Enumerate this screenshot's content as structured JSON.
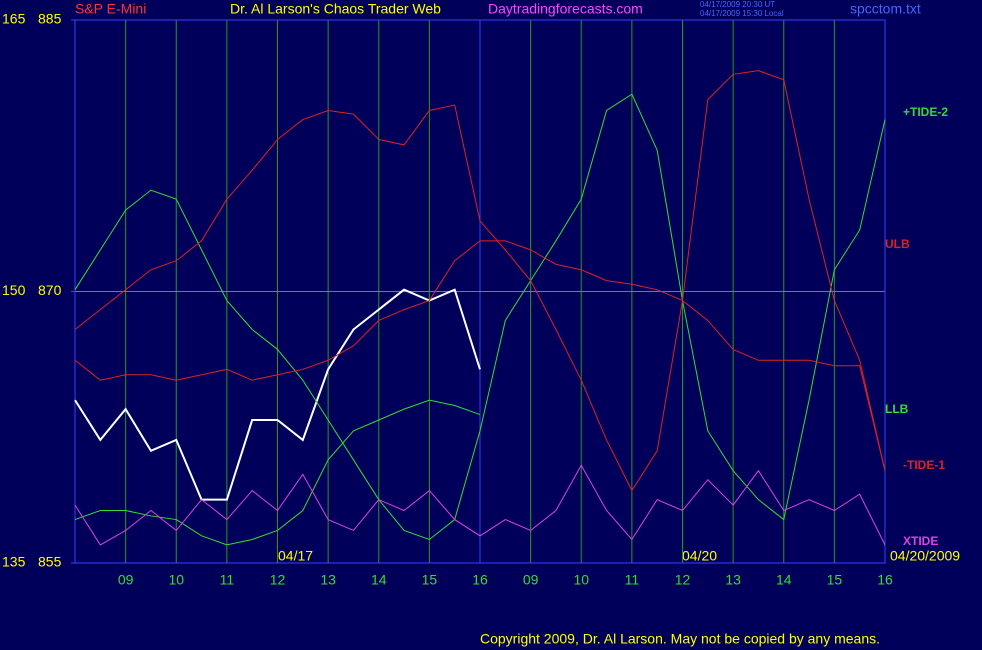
{
  "chart_data": {
    "type": "line",
    "subtitle": "S&P E-Mini",
    "title": "Dr. Al Larson's Chaos Trader Web",
    "annotations": [
      "Daytradingforecasts.com",
      "04/17/2009 20:30 UT",
      "04/17/2009 15:30 Local",
      "spcctom.txt",
      "04/17",
      "04/20",
      "04/20/2009",
      "Copyright 2009, Dr. Al Larson. May not be copied by any means."
    ],
    "categories": [
      null,
      null,
      "09",
      null,
      "10",
      null,
      "11",
      null,
      "12",
      null,
      "13",
      null,
      "14",
      null,
      "15",
      null,
      "16",
      null,
      "09",
      null,
      "10",
      null,
      "11",
      null,
      "12",
      null,
      "13",
      null,
      "14",
      null,
      "15",
      null,
      "16"
    ],
    "ylim": [
      855,
      885
    ],
    "yticks": [
      855,
      870,
      885
    ],
    "y2lim": [
      135,
      165
    ],
    "y2ticks": [
      135,
      150,
      165
    ],
    "grid": true,
    "series": [
      {
        "color": "#ffffff",
        "values": [
          864.0,
          861.8,
          863.5,
          861.2,
          861.8,
          858.5,
          858.5,
          862.9,
          862.9,
          861.8,
          865.7,
          867.9,
          869.0,
          870.1,
          869.5,
          870.1,
          865.7,
          null,
          null,
          null,
          null,
          null,
          null,
          null,
          null,
          null,
          null,
          null,
          null,
          null,
          null,
          null,
          null
        ]
      },
      {
        "name": "+TIDE-2",
        "color": "#33dd33",
        "values": [
          870.1,
          872.3,
          874.5,
          875.6,
          875.1,
          872.3,
          869.5,
          867.9,
          866.8,
          865.1,
          862.9,
          860.7,
          858.5,
          856.8,
          856.3,
          857.4,
          862.3,
          868.4,
          870.6,
          872.8,
          875.1,
          880.0,
          880.9,
          877.8,
          869.5,
          862.3,
          860.1,
          858.5,
          857.4,
          864.0,
          871.2,
          873.4,
          879.5
        ]
      },
      {
        "name": "ULB",
        "color": "#dd2222",
        "values": [
          867.9,
          869.0,
          870.1,
          871.2,
          871.7,
          872.8,
          875.1,
          876.7,
          878.4,
          879.5,
          880.0,
          879.8,
          878.4,
          878.1,
          880.0,
          880.3,
          873.9,
          872.3,
          870.6,
          867.9,
          865.1,
          861.8,
          859.0,
          861.2,
          869.5,
          880.6,
          882.0,
          882.2,
          881.7,
          875.1,
          869.5,
          866.2,
          860.1
        ]
      },
      {
        "name": "LLB",
        "color": "#33dd33",
        "values": [
          857.4,
          857.9,
          857.9,
          857.6,
          857.4,
          856.5,
          856.0,
          856.3,
          856.8,
          857.9,
          860.7,
          862.3,
          862.9,
          863.5,
          864.0,
          863.7,
          863.2,
          null,
          null,
          null,
          null,
          null,
          null,
          null,
          null,
          null,
          null,
          null,
          null,
          null,
          null,
          null,
          null
        ]
      },
      {
        "name": "-TIDE-1",
        "color": "#dd2222",
        "values": [
          866.2,
          865.1,
          865.4,
          865.4,
          865.1,
          865.4,
          865.7,
          865.1,
          865.4,
          865.7,
          866.2,
          867.0,
          868.4,
          869.0,
          869.5,
          871.7,
          872.8,
          872.8,
          872.3,
          871.5,
          871.2,
          870.6,
          870.4,
          870.1,
          869.5,
          868.4,
          866.8,
          866.2,
          866.2,
          866.2,
          865.9,
          865.9,
          860.1
        ]
      },
      {
        "name": "XTIDE",
        "color": "#dd44dd",
        "values": [
          858.2,
          856.0,
          856.8,
          857.9,
          856.8,
          858.5,
          857.4,
          859.0,
          857.9,
          859.9,
          857.4,
          856.8,
          858.5,
          857.9,
          859.0,
          857.4,
          856.5,
          857.4,
          856.8,
          857.9,
          860.4,
          857.9,
          856.3,
          858.5,
          857.9,
          859.6,
          858.2,
          860.1,
          857.9,
          858.5,
          857.9,
          858.8,
          856.0
        ]
      }
    ]
  }
}
